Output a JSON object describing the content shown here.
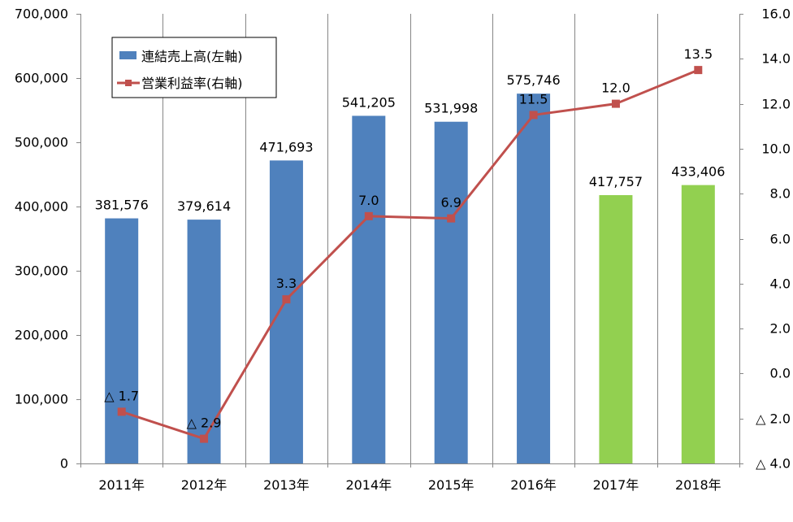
{
  "chart_data": {
    "type": "bar",
    "categories": [
      "2011年",
      "2012年",
      "2013年",
      "2014年",
      "2015年",
      "2016年",
      "2017年",
      "2018年"
    ],
    "series": [
      {
        "name": "連結売上高(左軸)",
        "type": "bar",
        "axis": "left",
        "values": [
          381576,
          379614,
          471693,
          541205,
          531998,
          575746,
          417757,
          433406
        ],
        "labels": [
          "381,576",
          "379,614",
          "471,693",
          "541,205",
          "531,998",
          "575,746",
          "417,757",
          "433,406"
        ],
        "colors": [
          "#4F81BD",
          "#4F81BD",
          "#4F81BD",
          "#4F81BD",
          "#4F81BD",
          "#4F81BD",
          "#92D050",
          "#92D050"
        ]
      },
      {
        "name": "営業利益率(右軸)",
        "type": "line",
        "axis": "right",
        "values": [
          -1.7,
          -2.9,
          3.3,
          7.0,
          6.9,
          11.5,
          12.0,
          13.5
        ],
        "labels": [
          "△ 1.7",
          "△ 2.9",
          "3.3",
          "7.0",
          "6.9",
          "11.5",
          "12.0",
          "13.5"
        ],
        "color": "#C0504D"
      }
    ],
    "y_left": {
      "ylim": [
        0,
        700000
      ],
      "ticks": [
        0,
        100000,
        200000,
        300000,
        400000,
        500000,
        600000,
        700000
      ],
      "tick_labels": [
        "0",
        "100,000",
        "200,000",
        "300,000",
        "400,000",
        "500,000",
        "600,000",
        "700,000"
      ]
    },
    "y_right": {
      "ylim": [
        -4,
        16
      ],
      "ticks": [
        -4,
        -2,
        0,
        2,
        4,
        6,
        8,
        10,
        12,
        14,
        16
      ],
      "tick_labels": [
        "△ 4.0",
        "△ 2.0",
        "0.0",
        "2.0",
        "4.0",
        "6.0",
        "8.0",
        "10.0",
        "12.0",
        "14.0",
        "16.0"
      ]
    },
    "grid": "vertical",
    "legend_position": "top-left"
  }
}
